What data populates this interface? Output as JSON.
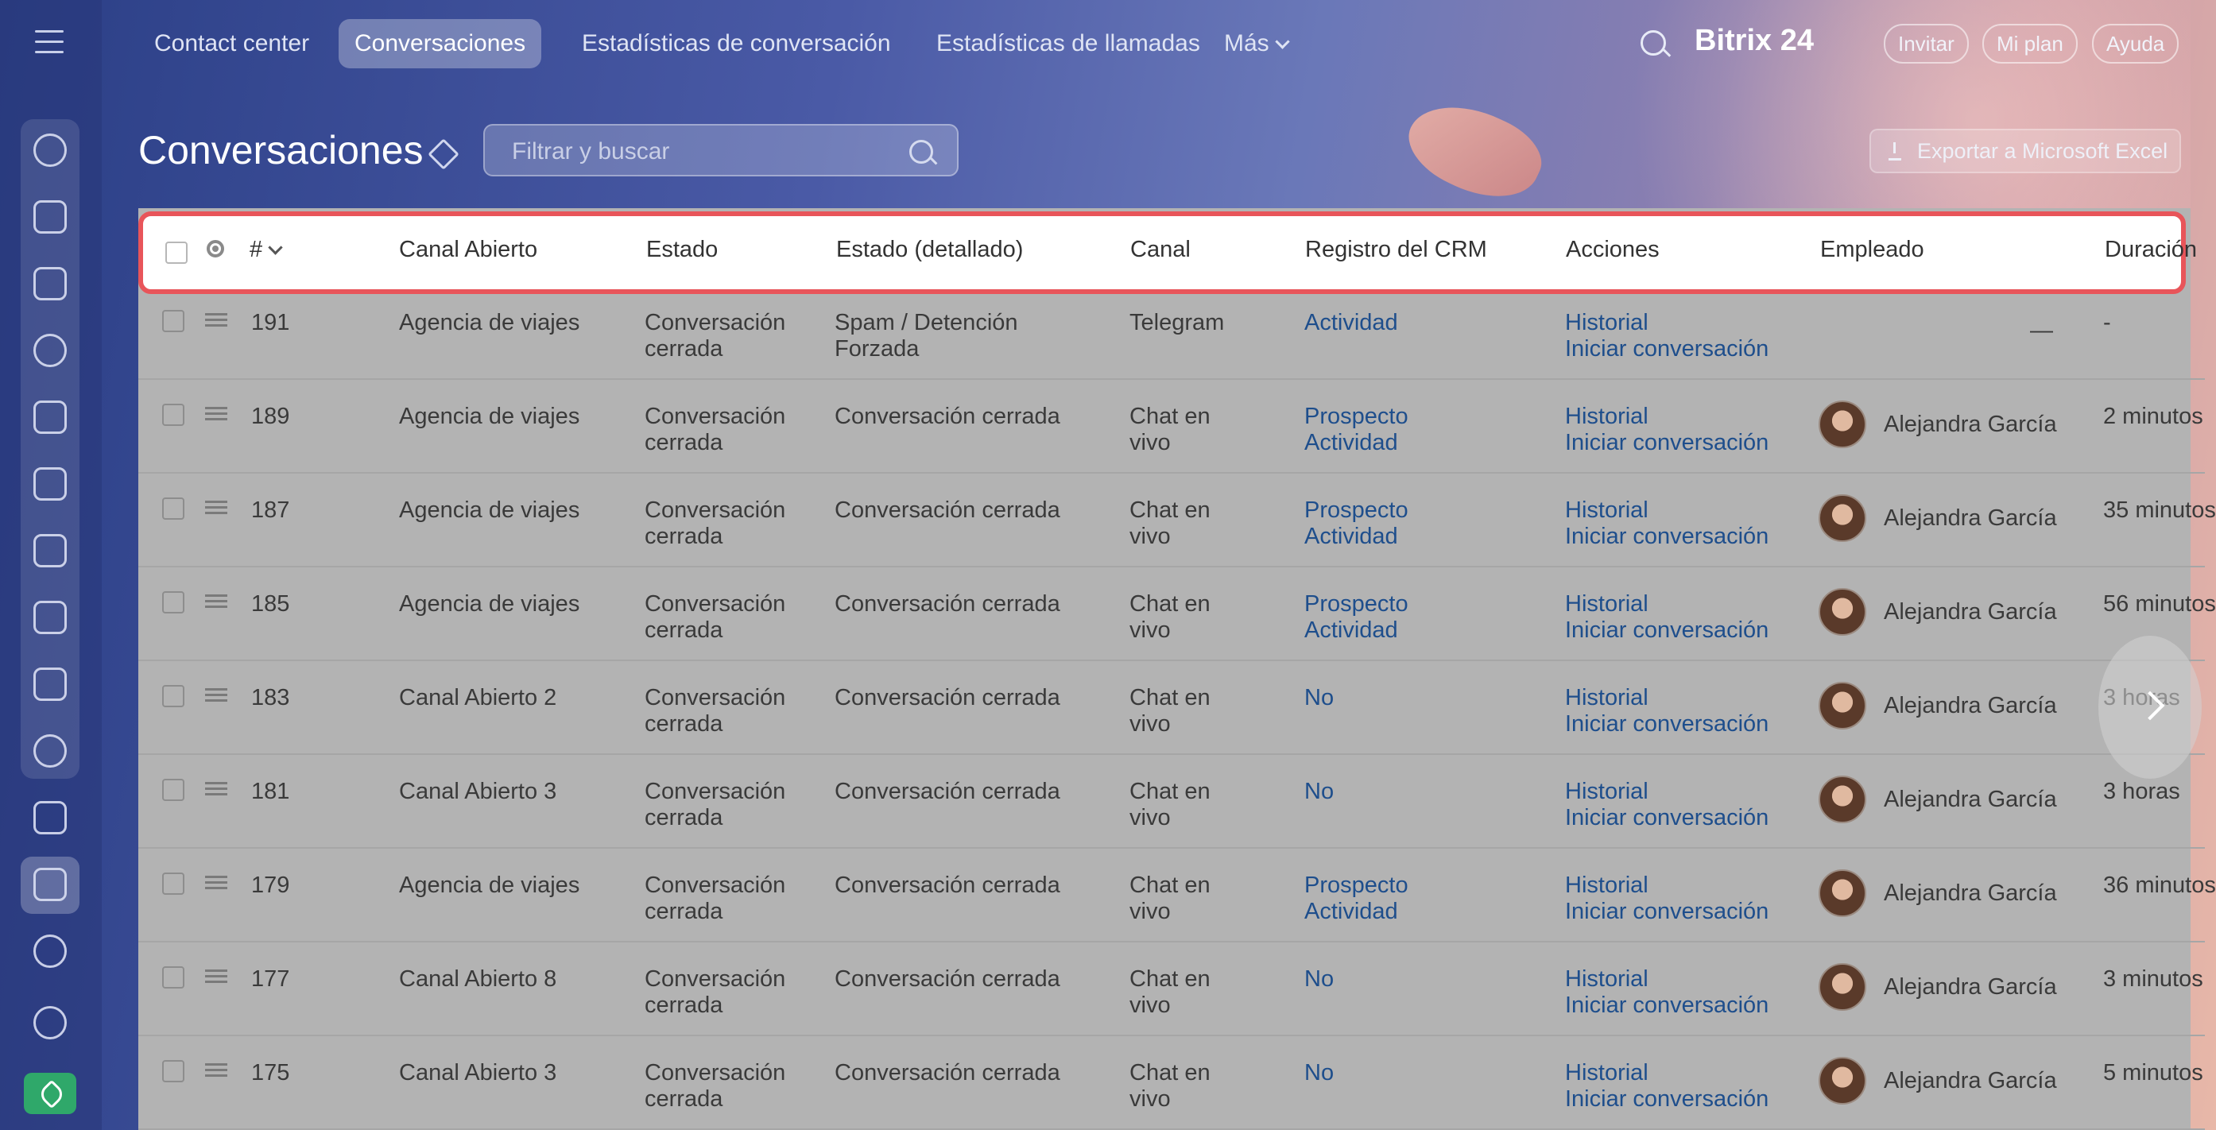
{
  "nav": {
    "items": [
      "Contact center",
      "Conversaciones",
      "Estadísticas de conversación",
      "Estadísticas de llamadas",
      "Más"
    ],
    "active": "Conversaciones",
    "brand": "Bitrix 24",
    "invite": "Invitar",
    "plan": "Mi plan",
    "help": "Ayuda"
  },
  "page": {
    "title": "Conversaciones",
    "filter_placeholder": "Filtrar y buscar",
    "export_label": "Exportar a Microsoft Excel"
  },
  "table": {
    "headers": {
      "num": "#",
      "canal_abierto": "Canal Abierto",
      "estado": "Estado",
      "estado_det": "Estado (detallado)",
      "canal": "Canal",
      "crm": "Registro del CRM",
      "acciones": "Acciones",
      "empleado": "Empleado",
      "duracion": "Duración"
    },
    "rows": [
      {
        "id": "191",
        "canal_abierto": "Agencia de viajes",
        "estado1": "Conversación",
        "estado2": "cerrada",
        "det1": "Spam / Detención",
        "det2": "Forzada",
        "canal1": "Telegram",
        "canal2": "",
        "crm1": "Actividad",
        "crm2": "",
        "acc1": "Historial",
        "acc2": "Iniciar conversación",
        "empleado": "—",
        "duracion": "-"
      },
      {
        "id": "189",
        "canal_abierto": "Agencia de viajes",
        "estado1": "Conversación",
        "estado2": "cerrada",
        "det1": "Conversación cerrada",
        "det2": "",
        "canal1": "Chat en",
        "canal2": "vivo",
        "crm1": "Prospecto",
        "crm2": "Actividad",
        "acc1": "Historial",
        "acc2": "Iniciar conversación",
        "empleado": "Alejandra García",
        "duracion": "2 minutos"
      },
      {
        "id": "187",
        "canal_abierto": "Agencia de viajes",
        "estado1": "Conversación",
        "estado2": "cerrada",
        "det1": "Conversación cerrada",
        "det2": "",
        "canal1": "Chat en",
        "canal2": "vivo",
        "crm1": "Prospecto",
        "crm2": "Actividad",
        "acc1": "Historial",
        "acc2": "Iniciar conversación",
        "empleado": "Alejandra García",
        "duracion": "35 minutos"
      },
      {
        "id": "185",
        "canal_abierto": "Agencia de viajes",
        "estado1": "Conversación",
        "estado2": "cerrada",
        "det1": "Conversación cerrada",
        "det2": "",
        "canal1": "Chat en",
        "canal2": "vivo",
        "crm1": "Prospecto",
        "crm2": "Actividad",
        "acc1": "Historial",
        "acc2": "Iniciar conversación",
        "empleado": "Alejandra García",
        "duracion": "56 minutos"
      },
      {
        "id": "183",
        "canal_abierto": "Canal Abierto 2",
        "estado1": "Conversación",
        "estado2": "cerrada",
        "det1": "Conversación cerrada",
        "det2": "",
        "canal1": "Chat en",
        "canal2": "vivo",
        "crm1": "No",
        "crm2": "",
        "acc1": "Historial",
        "acc2": "Iniciar conversación",
        "empleado": "Alejandra García",
        "duracion": "3 horas"
      },
      {
        "id": "181",
        "canal_abierto": "Canal Abierto 3",
        "estado1": "Conversación",
        "estado2": "cerrada",
        "det1": "Conversación cerrada",
        "det2": "",
        "canal1": "Chat en",
        "canal2": "vivo",
        "crm1": "No",
        "crm2": "",
        "acc1": "Historial",
        "acc2": "Iniciar conversación",
        "empleado": "Alejandra García",
        "duracion": "3 horas"
      },
      {
        "id": "179",
        "canal_abierto": "Agencia de viajes",
        "estado1": "Conversación",
        "estado2": "cerrada",
        "det1": "Conversación cerrada",
        "det2": "",
        "canal1": "Chat en",
        "canal2": "vivo",
        "crm1": "Prospecto",
        "crm2": "Actividad",
        "acc1": "Historial",
        "acc2": "Iniciar conversación",
        "empleado": "Alejandra García",
        "duracion": "36 minutos"
      },
      {
        "id": "177",
        "canal_abierto": "Canal Abierto 8",
        "estado1": "Conversación",
        "estado2": "cerrada",
        "det1": "Conversación cerrada",
        "det2": "",
        "canal1": "Chat en",
        "canal2": "vivo",
        "crm1": "No",
        "crm2": "",
        "acc1": "Historial",
        "acc2": "Iniciar conversación",
        "empleado": "Alejandra García",
        "duracion": "3 minutos"
      },
      {
        "id": "175",
        "canal_abierto": "Canal Abierto 3",
        "estado1": "Conversación",
        "estado2": "cerrada",
        "det1": "Conversación cerrada",
        "det2": "",
        "canal1": "Chat en",
        "canal2": "vivo",
        "crm1": "No",
        "crm2": "",
        "acc1": "Historial",
        "acc2": "Iniciar conversación",
        "empleado": "Alejandra García",
        "duracion": "5 minutos"
      }
    ]
  },
  "colors": {
    "highlight_border": "#e8555a",
    "link": "#1e4e8c",
    "sidebar_rocket": "#2fa86a"
  },
  "icons": [
    "menu-icon",
    "sidebar-icons",
    "search-icon",
    "pin-icon",
    "download-icon",
    "gear-icon",
    "drag-icon",
    "chevron-down-icon",
    "next-arrow-icon",
    "rocket-icon"
  ]
}
